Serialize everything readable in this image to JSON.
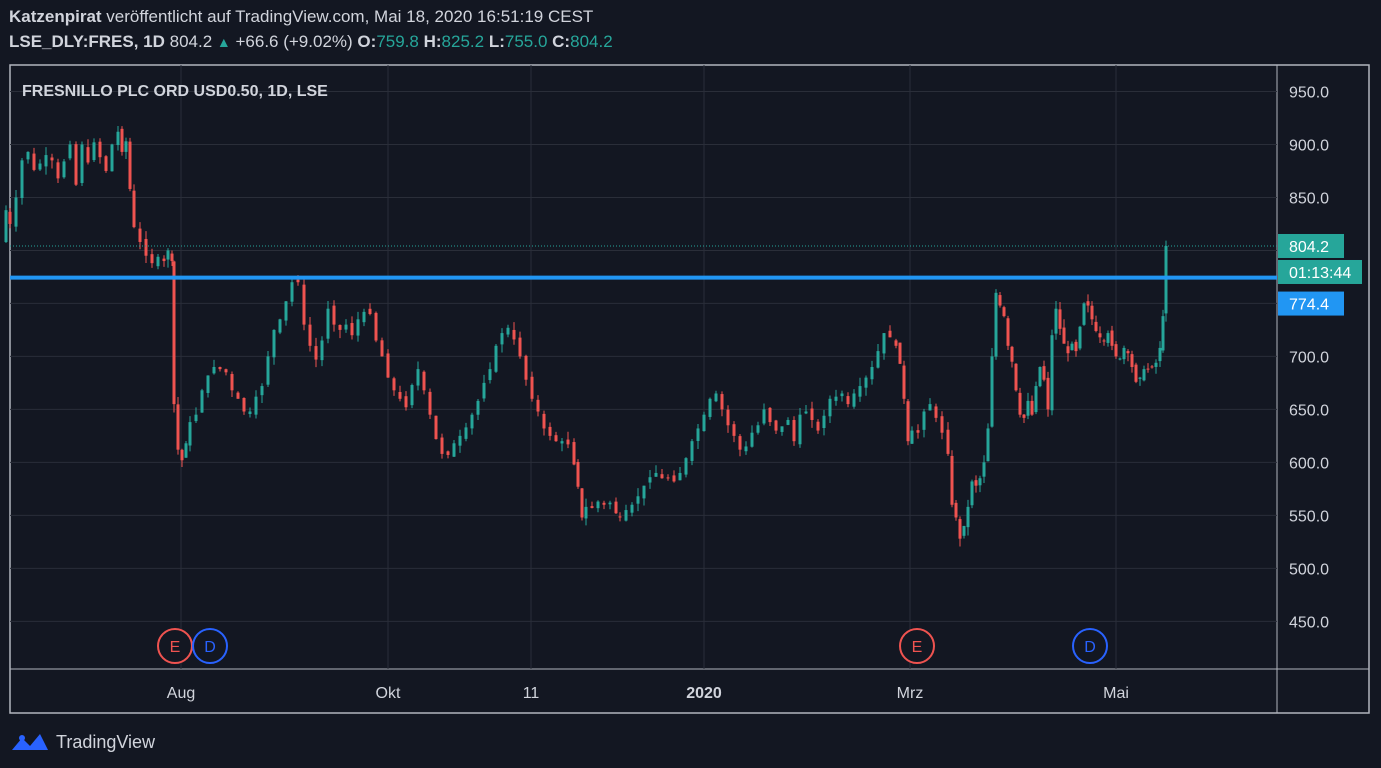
{
  "header": {
    "author": "Katzenpirat",
    "published_text": " veröffentlicht auf TradingView.com, Mai 18, 2020 16:51:19 CEST",
    "symbol": "LSE_DLY:FRES, 1D",
    "last": "804.2",
    "change": "+66.6 (+9.02%)",
    "o_label": "O:",
    "o_value": "759.8",
    "h_label": "H:",
    "h_value": "825.2",
    "l_label": "L:",
    "l_value": "755.0",
    "c_label": "C:",
    "c_value": "804.2"
  },
  "footer": {
    "brand": "TradingView"
  },
  "colors": {
    "background": "#131722",
    "up": "#26a69a",
    "down": "#ef5350",
    "level_line": "#2196f3",
    "grid": "#2a2e39",
    "text": "#d1d4dc",
    "earnings": "#ef5350",
    "dividend": "#2962ff"
  },
  "chart_data": {
    "type": "candlestick",
    "title": "FRESNILLO PLC ORD USD0.50, 1D, LSE",
    "ylim": [
      405,
      975
    ],
    "y_ticks": [
      "950.0",
      "900.0",
      "850.0",
      "800.0",
      "750.0",
      "700.0",
      "650.0",
      "600.0",
      "550.0",
      "500.0",
      "450.0"
    ],
    "x_ticks": [
      "Aug",
      "Okt",
      "11",
      "2020",
      "Mrz",
      "Mai"
    ],
    "grid": true,
    "price_labels": [
      {
        "text": "804.2",
        "kind": "last_price"
      },
      {
        "text": "01:13:44",
        "kind": "countdown"
      },
      {
        "text": "774.4",
        "kind": "horizontal_line"
      }
    ],
    "horizontal_line": 774.4,
    "event_markers": [
      {
        "label": "E",
        "kind": "earnings",
        "date": "Jul 31"
      },
      {
        "label": "D",
        "kind": "dividend",
        "date": "Aug 6"
      },
      {
        "label": "E",
        "kind": "earnings",
        "date": "Mar 3"
      },
      {
        "label": "D",
        "kind": "dividend",
        "date": "Apr 23"
      }
    ],
    "close_series": [
      [
        0,
        808
      ],
      [
        6,
        838
      ],
      [
        10,
        825
      ],
      [
        16,
        850
      ],
      [
        22,
        885
      ],
      [
        28,
        893
      ],
      [
        34,
        876
      ],
      [
        40,
        882
      ],
      [
        46,
        890
      ],
      [
        52,
        885
      ],
      [
        58,
        868
      ],
      [
        64,
        884
      ],
      [
        70,
        900
      ],
      [
        76,
        862
      ],
      [
        82,
        900
      ],
      [
        88,
        883
      ],
      [
        94,
        902
      ],
      [
        100,
        888
      ],
      [
        106,
        875
      ],
      [
        112,
        900
      ],
      [
        118,
        912
      ],
      [
        122,
        893
      ],
      [
        126,
        903
      ],
      [
        130,
        858
      ],
      [
        134,
        822
      ],
      [
        140,
        808
      ],
      [
        146,
        795
      ],
      [
        152,
        788
      ],
      [
        158,
        794
      ],
      [
        164,
        790
      ],
      [
        168,
        800
      ],
      [
        172,
        790
      ],
      [
        174,
        655
      ],
      [
        178,
        612
      ],
      [
        182,
        602
      ],
      [
        186,
        618
      ],
      [
        190,
        638
      ],
      [
        196,
        645
      ],
      [
        202,
        668
      ],
      [
        208,
        682
      ],
      [
        214,
        690
      ],
      [
        220,
        688
      ],
      [
        226,
        685
      ],
      [
        232,
        668
      ],
      [
        238,
        660
      ],
      [
        244,
        648
      ],
      [
        250,
        648
      ],
      [
        256,
        662
      ],
      [
        262,
        672
      ],
      [
        268,
        700
      ],
      [
        274,
        725
      ],
      [
        280,
        735
      ],
      [
        286,
        752
      ],
      [
        292,
        770
      ],
      [
        298,
        770
      ],
      [
        304,
        730
      ],
      [
        310,
        710
      ],
      [
        316,
        697
      ],
      [
        322,
        715
      ],
      [
        328,
        745
      ],
      [
        334,
        730
      ],
      [
        340,
        725
      ],
      [
        346,
        730
      ],
      [
        352,
        720
      ],
      [
        358,
        735
      ],
      [
        364,
        742
      ],
      [
        370,
        740
      ],
      [
        376,
        715
      ],
      [
        382,
        700
      ],
      [
        388,
        680
      ],
      [
        394,
        668
      ],
      [
        400,
        660
      ],
      [
        406,
        652
      ],
      [
        412,
        673
      ],
      [
        418,
        688
      ],
      [
        424,
        668
      ],
      [
        430,
        645
      ],
      [
        436,
        622
      ],
      [
        442,
        608
      ],
      [
        448,
        607
      ],
      [
        454,
        618
      ],
      [
        460,
        625
      ],
      [
        466,
        633
      ],
      [
        472,
        645
      ],
      [
        478,
        658
      ],
      [
        484,
        675
      ],
      [
        490,
        688
      ],
      [
        496,
        710
      ],
      [
        502,
        722
      ],
      [
        508,
        727
      ],
      [
        514,
        716
      ],
      [
        520,
        700
      ],
      [
        526,
        678
      ],
      [
        532,
        660
      ],
      [
        538,
        648
      ],
      [
        544,
        632
      ],
      [
        550,
        625
      ],
      [
        556,
        620
      ],
      [
        562,
        620
      ],
      [
        568,
        617
      ],
      [
        574,
        598
      ],
      [
        578,
        577
      ],
      [
        582,
        548
      ],
      [
        586,
        558
      ],
      [
        592,
        557
      ],
      [
        598,
        563
      ],
      [
        604,
        560
      ],
      [
        610,
        562
      ],
      [
        616,
        552
      ],
      [
        620,
        548
      ],
      [
        626,
        555
      ],
      [
        632,
        560
      ],
      [
        638,
        568
      ],
      [
        644,
        578
      ],
      [
        650,
        586
      ],
      [
        656,
        590
      ],
      [
        662,
        585
      ],
      [
        668,
        585
      ],
      [
        674,
        582
      ],
      [
        680,
        590
      ],
      [
        686,
        604
      ],
      [
        692,
        620
      ],
      [
        698,
        632
      ],
      [
        704,
        645
      ],
      [
        710,
        660
      ],
      [
        716,
        665
      ],
      [
        722,
        650
      ],
      [
        728,
        635
      ],
      [
        734,
        625
      ],
      [
        740,
        612
      ],
      [
        746,
        615
      ],
      [
        752,
        628
      ],
      [
        758,
        635
      ],
      [
        764,
        650
      ],
      [
        770,
        638
      ],
      [
        776,
        630
      ],
      [
        782,
        634
      ],
      [
        788,
        640
      ],
      [
        794,
        620
      ],
      [
        800,
        645
      ],
      [
        806,
        648
      ],
      [
        812,
        640
      ],
      [
        818,
        630
      ],
      [
        824,
        644
      ],
      [
        830,
        660
      ],
      [
        836,
        662
      ],
      [
        842,
        665
      ],
      [
        848,
        655
      ],
      [
        854,
        665
      ],
      [
        860,
        672
      ],
      [
        866,
        680
      ],
      [
        872,
        690
      ],
      [
        878,
        705
      ],
      [
        884,
        722
      ],
      [
        890,
        718
      ],
      [
        896,
        710
      ],
      [
        900,
        693
      ],
      [
        904,
        660
      ],
      [
        908,
        620
      ],
      [
        912,
        630
      ],
      [
        918,
        628
      ],
      [
        924,
        648
      ],
      [
        930,
        655
      ],
      [
        936,
        642
      ],
      [
        942,
        628
      ],
      [
        948,
        608
      ],
      [
        952,
        560
      ],
      [
        956,
        548
      ],
      [
        960,
        528
      ],
      [
        964,
        540
      ],
      [
        968,
        558
      ],
      [
        972,
        582
      ],
      [
        976,
        578
      ],
      [
        980,
        585
      ],
      [
        984,
        600
      ],
      [
        988,
        632
      ],
      [
        992,
        700
      ],
      [
        996,
        760
      ],
      [
        1000,
        748
      ],
      [
        1004,
        738
      ],
      [
        1008,
        710
      ],
      [
        1012,
        695
      ],
      [
        1016,
        668
      ],
      [
        1020,
        645
      ],
      [
        1024,
        642
      ],
      [
        1028,
        658
      ],
      [
        1032,
        645
      ],
      [
        1036,
        672
      ],
      [
        1040,
        690
      ],
      [
        1044,
        678
      ],
      [
        1048,
        650
      ],
      [
        1052,
        720
      ],
      [
        1056,
        745
      ],
      [
        1060,
        726
      ],
      [
        1064,
        712
      ],
      [
        1068,
        703
      ],
      [
        1072,
        712
      ],
      [
        1076,
        705
      ],
      [
        1080,
        728
      ],
      [
        1084,
        750
      ],
      [
        1088,
        748
      ],
      [
        1092,
        735
      ],
      [
        1096,
        724
      ],
      [
        1100,
        718
      ],
      [
        1104,
        715
      ],
      [
        1108,
        722
      ],
      [
        1112,
        710
      ],
      [
        1116,
        700
      ],
      [
        1120,
        698
      ],
      [
        1124,
        708
      ],
      [
        1128,
        703
      ],
      [
        1132,
        690
      ],
      [
        1136,
        676
      ],
      [
        1140,
        680
      ],
      [
        1144,
        688
      ],
      [
        1148,
        688
      ],
      [
        1152,
        690
      ],
      [
        1156,
        694
      ],
      [
        1160,
        708
      ],
      [
        1163,
        738
      ],
      [
        1166,
        804.2
      ]
    ]
  }
}
